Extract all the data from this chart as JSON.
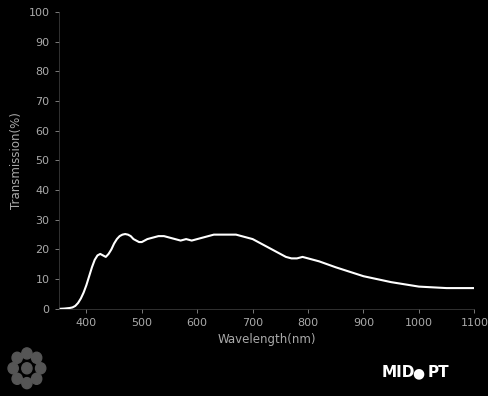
{
  "background_color": "#000000",
  "plot_bg_color": "#000000",
  "line_color": "#ffffff",
  "tick_color": "#aaaaaa",
  "label_color": "#aaaaaa",
  "title": "",
  "xlabel": "Wavelength(nm)",
  "ylabel": "Transmission(%)",
  "xlim": [
    350,
    1100
  ],
  "ylim": [
    0,
    100
  ],
  "xticks": [
    400,
    500,
    600,
    700,
    800,
    900,
    1000,
    1100
  ],
  "yticks": [
    0,
    10,
    20,
    30,
    40,
    50,
    60,
    70,
    80,
    90,
    100
  ],
  "wavelengths": [
    350,
    360,
    370,
    375,
    380,
    385,
    390,
    395,
    400,
    405,
    410,
    415,
    420,
    425,
    430,
    435,
    440,
    445,
    450,
    455,
    460,
    465,
    470,
    475,
    480,
    485,
    490,
    495,
    500,
    510,
    520,
    530,
    540,
    550,
    560,
    570,
    580,
    590,
    600,
    610,
    620,
    630,
    640,
    650,
    660,
    670,
    680,
    690,
    700,
    710,
    720,
    730,
    740,
    750,
    760,
    770,
    780,
    790,
    800,
    820,
    850,
    900,
    950,
    1000,
    1050,
    1100
  ],
  "transmission": [
    0.0,
    0.1,
    0.3,
    0.5,
    1.0,
    2.0,
    3.5,
    5.5,
    8.0,
    11.0,
    14.0,
    16.5,
    18.0,
    18.5,
    18.0,
    17.5,
    18.5,
    20.0,
    22.0,
    23.5,
    24.5,
    25.0,
    25.2,
    25.0,
    24.5,
    23.5,
    23.0,
    22.5,
    22.5,
    23.5,
    24.0,
    24.5,
    24.5,
    24.0,
    23.5,
    23.0,
    23.5,
    23.0,
    23.5,
    24.0,
    24.5,
    25.0,
    25.0,
    25.0,
    25.0,
    25.0,
    24.5,
    24.0,
    23.5,
    22.5,
    21.5,
    20.5,
    19.5,
    18.5,
    17.5,
    17.0,
    17.0,
    17.5,
    17.0,
    16.0,
    14.0,
    11.0,
    9.0,
    7.5,
    7.0,
    7.0
  ],
  "line_width": 1.5,
  "figsize": [
    4.89,
    3.96
  ],
  "dpi": 100
}
